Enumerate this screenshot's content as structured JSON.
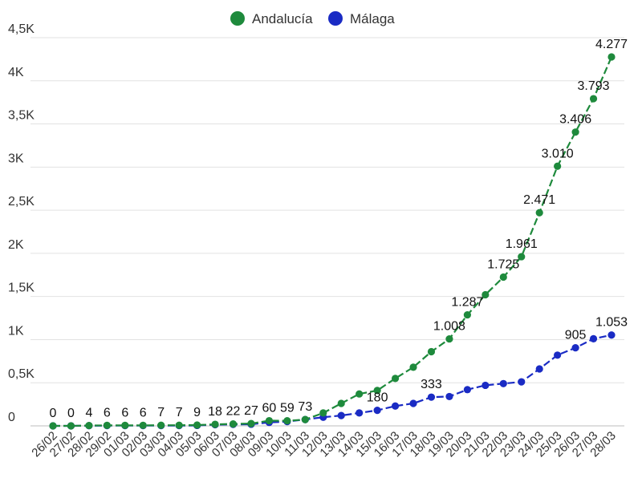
{
  "chart_data": {
    "type": "line",
    "title": "",
    "xlabel": "",
    "ylabel": "",
    "ylim": [
      0,
      4500
    ],
    "yticks": [
      0,
      500,
      1000,
      1500,
      2000,
      2500,
      3000,
      3500,
      4000,
      4500
    ],
    "ytick_labels": [
      "0",
      "0,5K",
      "1K",
      "1,5K",
      "2K",
      "2,5K",
      "3K",
      "3,5K",
      "4K",
      "4,5K"
    ],
    "grid": true,
    "legend_position": "top-center",
    "categories": [
      "26/02",
      "27/02",
      "28/02",
      "29/02",
      "01/03",
      "02/03",
      "03/03",
      "04/03",
      "05/03",
      "06/03",
      "07/03",
      "08/03",
      "09/03",
      "10/03",
      "11/03",
      "12/03",
      "13/03",
      "14/03",
      "15/03",
      "16/03",
      "17/03",
      "18/03",
      "19/03",
      "20/03",
      "21/03",
      "22/03",
      "23/03",
      "24/03",
      "25/03",
      "26/03",
      "27/03",
      "28/03"
    ],
    "series": [
      {
        "name": "Andalucía",
        "color": "#1e8a3c",
        "values": [
          0,
          0,
          4,
          6,
          6,
          6,
          7,
          7,
          9,
          18,
          22,
          27,
          60,
          59,
          73,
          150,
          260,
          370,
          410,
          550,
          680,
          860,
          1008,
          1287,
          1520,
          1725,
          1961,
          2471,
          3010,
          3406,
          3793,
          4277
        ]
      },
      {
        "name": "Málaga",
        "color": "#1a2bc4",
        "values": [
          0,
          0,
          2,
          3,
          3,
          3,
          3,
          3,
          5,
          14,
          17,
          19,
          40,
          50,
          73,
          100,
          120,
          150,
          180,
          230,
          260,
          333,
          340,
          420,
          470,
          490,
          510,
          660,
          820,
          905,
          1010,
          1053
        ]
      }
    ],
    "data_labels": [
      {
        "series": 0,
        "index": 0,
        "text": "0"
      },
      {
        "series": 0,
        "index": 1,
        "text": "0"
      },
      {
        "series": 0,
        "index": 2,
        "text": "4"
      },
      {
        "series": 0,
        "index": 3,
        "text": "6"
      },
      {
        "series": 0,
        "index": 4,
        "text": "6"
      },
      {
        "series": 0,
        "index": 5,
        "text": "6"
      },
      {
        "series": 0,
        "index": 6,
        "text": "7"
      },
      {
        "series": 0,
        "index": 7,
        "text": "7"
      },
      {
        "series": 0,
        "index": 8,
        "text": "9"
      },
      {
        "series": 0,
        "index": 9,
        "text": "18"
      },
      {
        "series": 0,
        "index": 10,
        "text": "22"
      },
      {
        "series": 0,
        "index": 11,
        "text": "27"
      },
      {
        "series": 0,
        "index": 12,
        "text": "60"
      },
      {
        "series": 0,
        "index": 13,
        "text": "59"
      },
      {
        "series": 0,
        "index": 14,
        "text": "73"
      },
      {
        "series": 0,
        "index": 22,
        "text": "1.008"
      },
      {
        "series": 0,
        "index": 23,
        "text": "1.287"
      },
      {
        "series": 0,
        "index": 25,
        "text": "1.725"
      },
      {
        "series": 0,
        "index": 26,
        "text": "1.961"
      },
      {
        "series": 0,
        "index": 27,
        "text": "2.471"
      },
      {
        "series": 0,
        "index": 28,
        "text": "3.010"
      },
      {
        "series": 0,
        "index": 29,
        "text": "3.406"
      },
      {
        "series": 0,
        "index": 30,
        "text": "3.793"
      },
      {
        "series": 0,
        "index": 31,
        "text": "4.277"
      },
      {
        "series": 1,
        "index": 18,
        "text": "180"
      },
      {
        "series": 1,
        "index": 21,
        "text": "333"
      },
      {
        "series": 1,
        "index": 29,
        "text": "905"
      },
      {
        "series": 1,
        "index": 31,
        "text": "1.053"
      }
    ]
  }
}
